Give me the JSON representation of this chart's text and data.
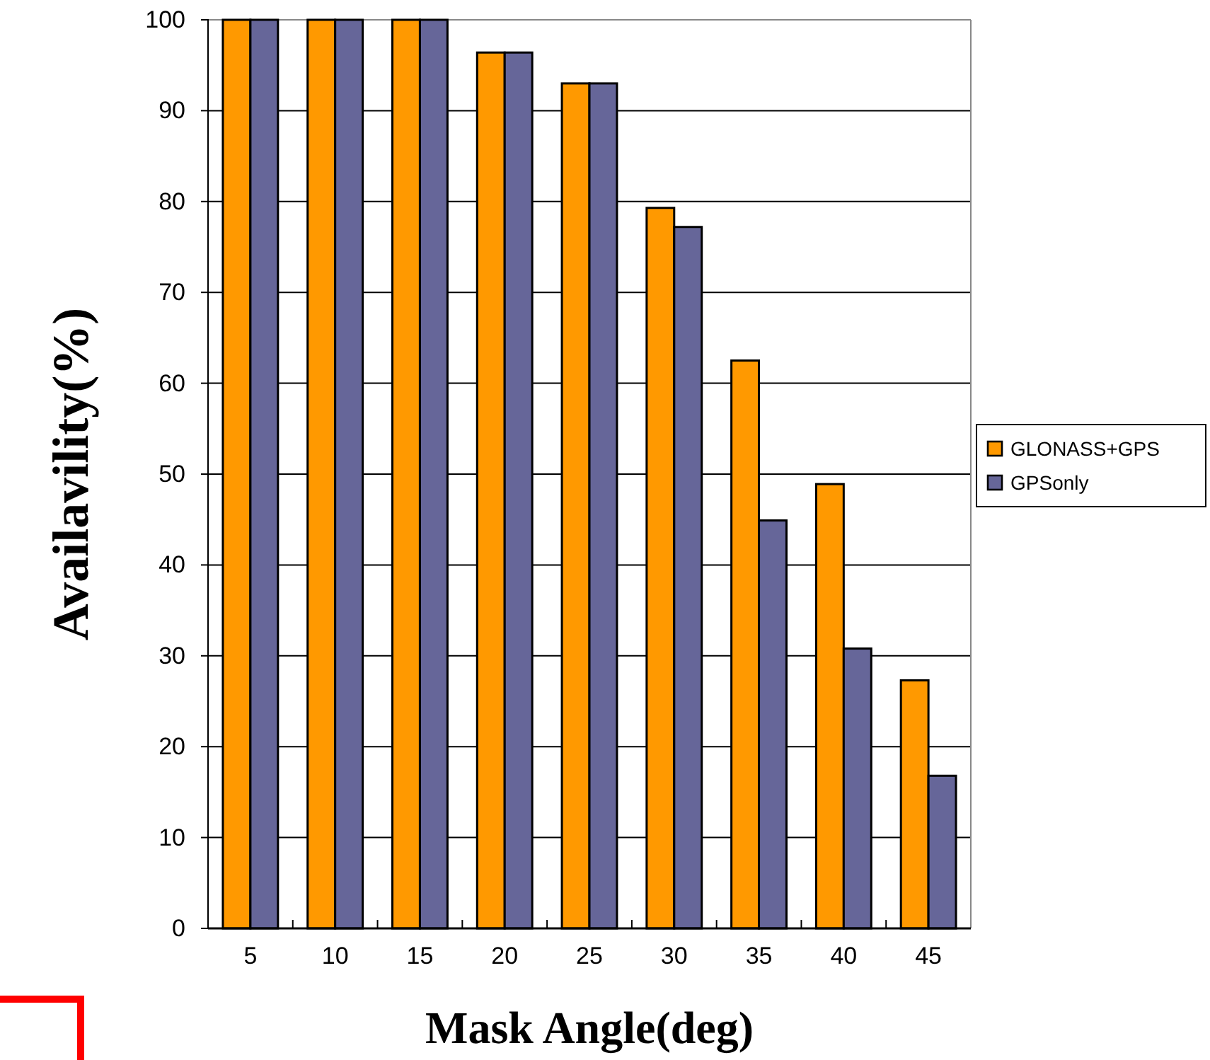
{
  "chart_data": {
    "type": "bar",
    "xlabel": "Mask Angle(deg)",
    "ylabel": "Availavility(%)",
    "categories": [
      "5",
      "10",
      "15",
      "20",
      "25",
      "30",
      "35",
      "40",
      "45"
    ],
    "series": [
      {
        "name": "GLONASS+GPS",
        "color": "#ff9900",
        "values": [
          100,
          100,
          100,
          96.4,
          93.0,
          79.3,
          62.5,
          48.9,
          27.3
        ]
      },
      {
        "name": "GPSonly",
        "color": "#666699",
        "values": [
          100,
          100,
          100,
          96.4,
          93.0,
          77.2,
          44.9,
          30.8,
          16.8
        ]
      }
    ],
    "ylim": [
      0,
      100
    ],
    "yticks": [
      0,
      10,
      20,
      30,
      40,
      50,
      60,
      70,
      80,
      90,
      100
    ],
    "grid": "y",
    "legend": "right"
  }
}
